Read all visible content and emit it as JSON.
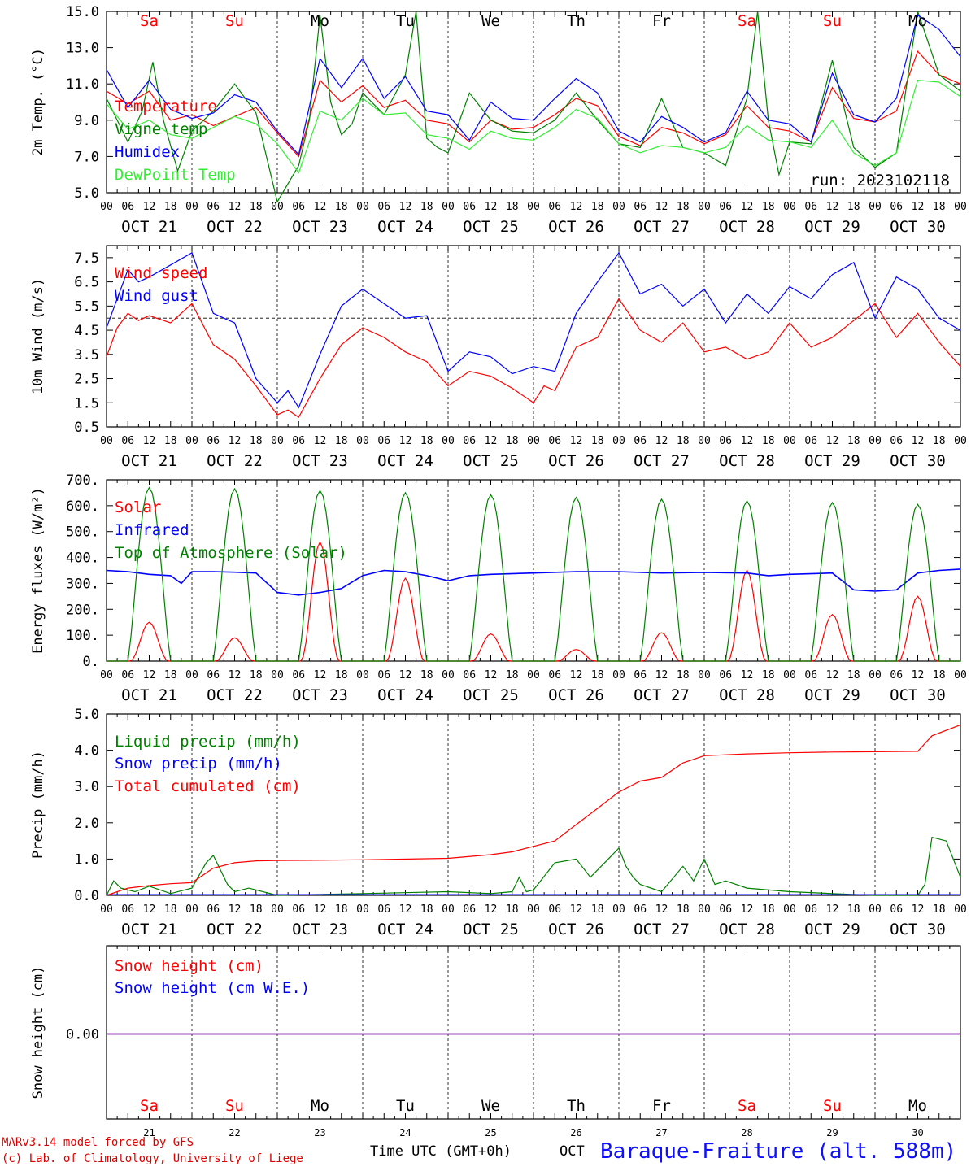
{
  "colors": {
    "red": "#ff0000",
    "green": "#008000",
    "blue": "#0000ff",
    "lightgreen": "#33ee33",
    "purple": "#8000a0",
    "black": "#000000"
  },
  "days": [
    "Sa",
    "Su",
    "Mo",
    "Tu",
    "We",
    "Th",
    "Fr",
    "Sa",
    "Su",
    "Mo"
  ],
  "weekend": [
    true,
    true,
    false,
    false,
    false,
    false,
    false,
    true,
    true,
    false
  ],
  "dates": [
    "OCT 21",
    "OCT 22",
    "OCT 23",
    "OCT 24",
    "OCT 25",
    "OCT 26",
    "OCT 27",
    "OCT 28",
    "OCT 29",
    "OCT 30"
  ],
  "hour_ticks": [
    "00",
    "06",
    "12",
    "18"
  ],
  "bottom_day_numbers": [
    "21",
    "22",
    "23",
    "24",
    "25",
    "26",
    "27",
    "28",
    "29",
    "30"
  ],
  "footer": {
    "model": "MARv3.14 model forced by GFS",
    "lab": "(c) Lab. of Climatology, University of Liege",
    "time_label": "Time UTC (GMT+0h)",
    "month": "OCT",
    "station": "Baraque-Fraiture (alt. 588m)"
  },
  "chart_data": [
    {
      "type": "line",
      "ylabel": "2m Temp. (°C)",
      "ylim": [
        5,
        15
      ],
      "yticks": [
        "5.0",
        "7.0",
        "9.0",
        "11.0",
        "13.0",
        "15.0"
      ],
      "run_label": "run: 2023102118",
      "x_unit": "hours since 2023-10-21 00 UTC",
      "series": [
        {
          "name": "Temperature",
          "color": "red",
          "x": [
            0,
            6,
            12,
            18,
            24,
            30,
            36,
            42,
            48,
            54,
            60,
            66,
            72,
            78,
            84,
            90,
            96,
            102,
            108,
            114,
            120,
            126,
            132,
            138,
            144,
            150,
            156,
            162,
            168,
            174,
            180,
            186,
            192,
            198,
            204,
            210,
            216,
            222,
            228,
            234,
            240
          ],
          "y": [
            10.6,
            9.9,
            10.6,
            9.0,
            9.3,
            8.7,
            9.2,
            9.7,
            8.3,
            7.0,
            11.2,
            10.0,
            10.9,
            9.7,
            10.1,
            9.0,
            8.8,
            7.8,
            9.0,
            8.5,
            8.6,
            9.3,
            10.2,
            9.8,
            8.1,
            7.6,
            8.6,
            8.3,
            7.7,
            8.2,
            9.8,
            8.6,
            8.4,
            7.8,
            10.8,
            9.1,
            8.9,
            9.5,
            12.8,
            11.5,
            11.0
          ]
        },
        {
          "name": "Vigne temp",
          "color": "green",
          "x": [
            0,
            6,
            10,
            13,
            16,
            20,
            24,
            30,
            36,
            42,
            48,
            54,
            57,
            60,
            63,
            66,
            69,
            72,
            78,
            84,
            87,
            90,
            93,
            96,
            102,
            108,
            114,
            120,
            126,
            132,
            138,
            144,
            150,
            156,
            162,
            168,
            174,
            180,
            183,
            186,
            189,
            192,
            198,
            204,
            210,
            216,
            222,
            228,
            234,
            240
          ],
          "y": [
            10.2,
            7.8,
            9.5,
            12.2,
            9.0,
            6.2,
            8.4,
            9.5,
            11.0,
            9.4,
            4.5,
            6.5,
            9.0,
            14.8,
            10.0,
            8.2,
            8.8,
            10.5,
            9.3,
            11.5,
            15.0,
            8.0,
            7.5,
            7.2,
            10.5,
            9.0,
            8.4,
            8.3,
            9.0,
            10.5,
            9.0,
            7.7,
            7.5,
            10.2,
            7.5,
            7.2,
            6.5,
            10.2,
            15.0,
            9.0,
            6.0,
            7.8,
            7.7,
            12.3,
            7.5,
            6.4,
            7.2,
            15.0,
            11.5,
            10.6
          ]
        },
        {
          "name": "Humidex",
          "color": "blue",
          "x": [
            0,
            6,
            12,
            18,
            24,
            30,
            36,
            42,
            48,
            54,
            60,
            66,
            72,
            78,
            84,
            90,
            96,
            102,
            108,
            114,
            120,
            126,
            132,
            138,
            144,
            150,
            156,
            162,
            168,
            174,
            180,
            186,
            192,
            198,
            204,
            210,
            216,
            222,
            228,
            234,
            240
          ],
          "y": [
            11.8,
            9.7,
            11.2,
            9.6,
            9.1,
            9.4,
            10.4,
            10.0,
            8.4,
            7.1,
            12.4,
            10.8,
            12.4,
            10.2,
            11.4,
            9.5,
            9.3,
            7.9,
            10.0,
            9.1,
            9.0,
            10.2,
            11.3,
            10.5,
            8.4,
            7.8,
            9.2,
            8.6,
            7.8,
            8.3,
            10.6,
            9.0,
            8.8,
            7.8,
            11.6,
            9.3,
            8.9,
            10.2,
            14.8,
            14.0,
            12.5
          ]
        },
        {
          "name": "DewPoint Temp",
          "color": "lightgreen",
          "x": [
            0,
            6,
            12,
            18,
            24,
            30,
            36,
            42,
            48,
            54,
            60,
            66,
            72,
            78,
            84,
            90,
            96,
            102,
            108,
            114,
            120,
            126,
            132,
            138,
            144,
            150,
            156,
            162,
            168,
            174,
            180,
            186,
            192,
            198,
            204,
            210,
            216,
            222,
            228,
            234,
            240
          ],
          "y": [
            9.9,
            8.5,
            9.0,
            8.2,
            8.0,
            8.6,
            9.2,
            8.8,
            7.7,
            6.1,
            9.5,
            9.0,
            10.2,
            9.3,
            9.4,
            8.2,
            8.0,
            7.4,
            8.4,
            8.0,
            7.9,
            8.6,
            9.6,
            9.1,
            7.7,
            7.2,
            7.6,
            7.5,
            7.2,
            7.5,
            8.7,
            7.9,
            7.8,
            7.5,
            9.0,
            7.2,
            6.5,
            7.2,
            11.2,
            11.1,
            10.3
          ]
        }
      ]
    },
    {
      "type": "line",
      "ylabel": "10m Wind (m/s)",
      "ylim": [
        0.5,
        8
      ],
      "yticks": [
        "0.5",
        "1.5",
        "2.5",
        "3.5",
        "4.5",
        "5.5",
        "6.5",
        "7.5"
      ],
      "reference_line": 5.0,
      "series": [
        {
          "name": "Wind speed",
          "color": "red",
          "x": [
            0,
            3,
            6,
            9,
            12,
            18,
            24,
            30,
            36,
            42,
            48,
            51,
            54,
            60,
            66,
            72,
            78,
            84,
            90,
            96,
            102,
            108,
            114,
            120,
            123,
            126,
            132,
            138,
            144,
            150,
            156,
            162,
            168,
            174,
            180,
            186,
            192,
            198,
            204,
            210,
            216,
            222,
            228,
            234,
            240
          ],
          "y": [
            3.4,
            4.6,
            5.2,
            4.9,
            5.1,
            4.8,
            5.6,
            3.9,
            3.3,
            2.2,
            1.0,
            1.2,
            0.9,
            2.5,
            3.9,
            4.6,
            4.2,
            3.6,
            3.2,
            2.2,
            2.8,
            2.6,
            2.1,
            1.5,
            2.2,
            2.0,
            3.8,
            4.2,
            5.8,
            4.5,
            4.0,
            4.8,
            3.6,
            3.8,
            3.3,
            3.6,
            4.8,
            3.8,
            4.2,
            4.9,
            5.6,
            4.2,
            5.2,
            4.0,
            3.0
          ]
        },
        {
          "name": "Wind gust",
          "color": "blue",
          "x": [
            0,
            3,
            6,
            9,
            12,
            18,
            24,
            30,
            36,
            42,
            48,
            51,
            54,
            60,
            66,
            72,
            78,
            84,
            90,
            96,
            102,
            108,
            114,
            120,
            126,
            132,
            138,
            144,
            150,
            156,
            162,
            168,
            174,
            180,
            186,
            192,
            198,
            204,
            210,
            216,
            222,
            228,
            234,
            240
          ],
          "y": [
            4.6,
            5.8,
            7.0,
            6.5,
            6.7,
            7.2,
            7.7,
            5.2,
            4.8,
            2.5,
            1.5,
            2.0,
            1.3,
            3.5,
            5.5,
            6.2,
            5.6,
            5.0,
            5.1,
            2.8,
            3.6,
            3.4,
            2.7,
            3.0,
            2.8,
            5.2,
            6.5,
            7.7,
            6.0,
            6.4,
            5.5,
            6.2,
            4.8,
            6.0,
            5.2,
            6.3,
            5.8,
            6.8,
            7.3,
            5.0,
            6.7,
            6.2,
            5.0,
            4.5
          ]
        }
      ]
    },
    {
      "type": "line",
      "ylabel": "Energy fluxes (W/m²)",
      "ylim": [
        0,
        700
      ],
      "yticks": [
        "0.",
        "100.",
        "200.",
        "300.",
        "400.",
        "500.",
        "600.",
        "700."
      ],
      "series": [
        {
          "name": "Solar",
          "color": "red",
          "day_peaks": [
            150,
            90,
            460,
            320,
            105,
            45,
            110,
            350,
            180,
            250
          ]
        },
        {
          "name": "Infrared",
          "color": "blue",
          "x": [
            0,
            6,
            12,
            18,
            21,
            24,
            30,
            36,
            42,
            48,
            54,
            60,
            66,
            72,
            78,
            84,
            90,
            96,
            102,
            108,
            120,
            132,
            144,
            156,
            168,
            180,
            186,
            192,
            204,
            210,
            216,
            222,
            228,
            234,
            240
          ],
          "y": [
            350,
            345,
            335,
            330,
            300,
            345,
            345,
            343,
            340,
            265,
            255,
            265,
            280,
            330,
            350,
            345,
            330,
            310,
            330,
            335,
            340,
            345,
            345,
            340,
            342,
            340,
            330,
            335,
            340,
            275,
            270,
            275,
            340,
            350,
            355
          ]
        },
        {
          "name": "Top of Atmosphere (Solar)",
          "color": "green",
          "day_peaks": [
            670,
            665,
            658,
            650,
            642,
            632,
            625,
            618,
            612,
            605
          ]
        }
      ]
    },
    {
      "type": "line",
      "ylabel": "Precip (mm/h)",
      "ylim": [
        0,
        5
      ],
      "yticks": [
        "0.0",
        "1.0",
        "2.0",
        "3.0",
        "4.0",
        "5.0"
      ],
      "series": [
        {
          "name": "Liquid precip (mm/h)",
          "color": "green",
          "x": [
            0,
            2,
            4,
            8,
            12,
            18,
            24,
            28,
            30,
            34,
            36,
            40,
            48,
            72,
            96,
            108,
            114,
            116,
            118,
            120,
            126,
            132,
            136,
            140,
            144,
            146,
            148,
            150,
            156,
            162,
            165,
            168,
            171,
            174,
            180,
            192,
            204,
            216,
            228,
            230,
            232,
            236,
            240
          ],
          "y": [
            0.0,
            0.4,
            0.2,
            0.1,
            0.25,
            0.05,
            0.2,
            0.9,
            1.1,
            0.3,
            0.1,
            0.2,
            0.0,
            0.05,
            0.1,
            0.05,
            0.1,
            0.5,
            0.1,
            0.15,
            0.9,
            1.0,
            0.5,
            0.9,
            1.3,
            0.8,
            0.5,
            0.3,
            0.1,
            0.8,
            0.4,
            1.0,
            0.3,
            0.4,
            0.2,
            0.1,
            0.05,
            0.0,
            0.0,
            0.3,
            1.6,
            1.5,
            0.5
          ]
        },
        {
          "name": "Snow precip (mm/h)",
          "color": "blue",
          "x": [
            0,
            240
          ],
          "y": [
            0.02,
            0.02
          ]
        },
        {
          "name": "Total cumulated (cm)",
          "color": "red",
          "x": [
            0,
            6,
            12,
            18,
            24,
            30,
            36,
            42,
            48,
            72,
            96,
            108,
            114,
            120,
            126,
            132,
            138,
            144,
            150,
            156,
            162,
            168,
            180,
            192,
            204,
            216,
            228,
            232,
            240
          ],
          "y": [
            0.0,
            0.2,
            0.27,
            0.32,
            0.35,
            0.75,
            0.9,
            0.95,
            0.96,
            0.98,
            1.02,
            1.12,
            1.2,
            1.35,
            1.5,
            1.95,
            2.4,
            2.85,
            3.15,
            3.25,
            3.65,
            3.85,
            3.9,
            3.93,
            3.95,
            3.96,
            3.97,
            4.4,
            4.7
          ]
        }
      ]
    },
    {
      "type": "line",
      "ylabel": "Snow height (cm)",
      "yticks": [
        "0.00"
      ],
      "series": [
        {
          "name": "Snow height (cm)",
          "color": "red",
          "x": [
            0,
            240
          ],
          "y": [
            0,
            0
          ]
        },
        {
          "name": "Snow height (cm W.E.)",
          "color": "blue",
          "x": [
            0,
            240
          ],
          "y": [
            0,
            0
          ]
        }
      ]
    }
  ]
}
